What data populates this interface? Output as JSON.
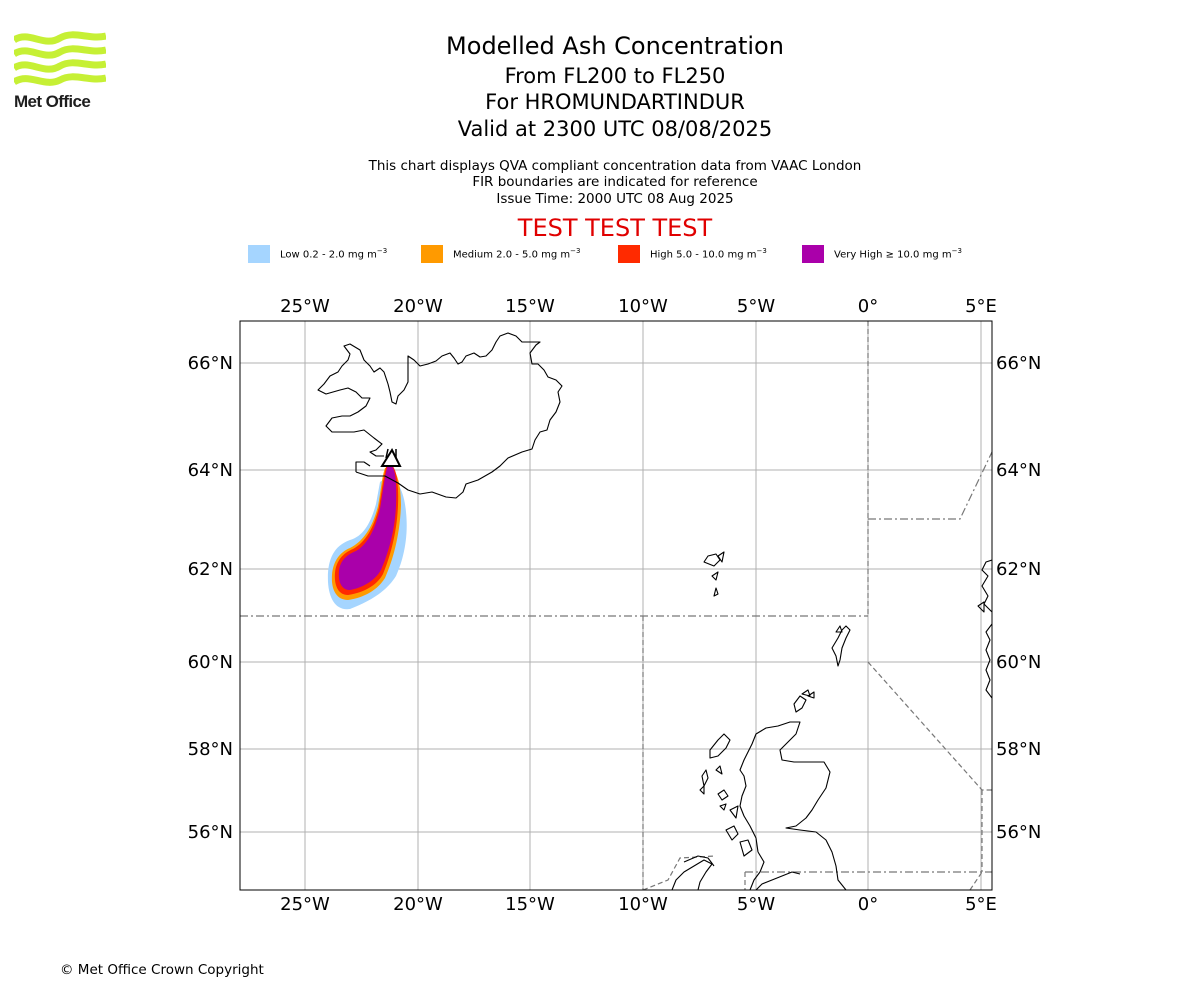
{
  "logo": {
    "text": "Met Office",
    "color": "#c6f035"
  },
  "title": {
    "main": "Modelled Ash Concentration",
    "levels": "From FL200 to FL250",
    "volcano": "For HROMUNDARTINDUR",
    "valid": "Valid at 2300 UTC 08/08/2025"
  },
  "subtitle": {
    "line1": "This chart displays QVA compliant concentration data from VAAC London",
    "line2": "FIR boundaries are indicated for reference",
    "line3": "Issue Time: 2000 UTC 08 Aug 2025"
  },
  "test_banner": "TEST TEST TEST",
  "legend": [
    {
      "label": "Low 0.2 - 2.0 mg m",
      "unit_exp": "−3",
      "color": "#a5d5ff"
    },
    {
      "label": "Medium 2.0 - 5.0 mg m",
      "unit_exp": "−3",
      "color": "#ff9a00"
    },
    {
      "label": "High 5.0 - 10.0 mg m",
      "unit_exp": "−3",
      "color": "#ff2a00"
    },
    {
      "label": "Very High  ≥  10.0 mg m",
      "unit_exp": "−3",
      "color": "#aa00aa"
    }
  ],
  "map": {
    "lon_ticks": [
      "25°W",
      "20°W",
      "15°W",
      "10°W",
      "5°W",
      "0°",
      "5°E"
    ],
    "lat_ticks": [
      "66°N",
      "64°N",
      "62°N",
      "60°N",
      "58°N",
      "56°N"
    ],
    "volcano_marker": "triangle"
  },
  "footer": {
    "copyright": "© Met Office Crown Copyright"
  }
}
